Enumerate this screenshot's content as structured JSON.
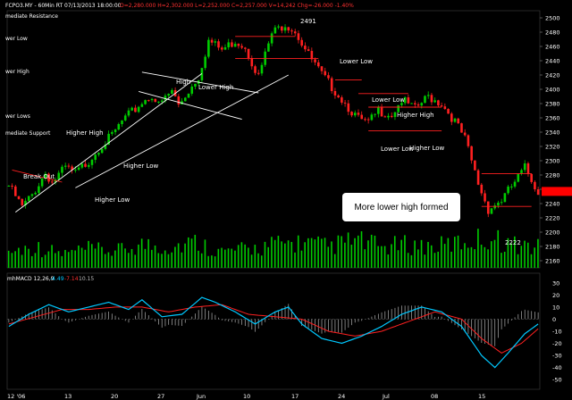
{
  "header": {
    "symbol": "FCPO3.MY - 60Min RT  07/13/2013 18:00:00",
    "ohlc": "O=2,280.000  H=2,302.000  L=2,252.000  C=2,257.000  V=14,242  Chg=-26.000  -1.40%"
  },
  "left_notes": [
    "mediate Resistance",
    "wer Low",
    "wer High",
    "wer Lows",
    "mediate Support"
  ],
  "annotations": {
    "break_out": "Break Out",
    "higher_high_1": "Higher High",
    "higher_low_1": "Higher Low",
    "higher_low_2": "Higher Low",
    "high": "High",
    "lower_high": "Lower High",
    "peak": "2491",
    "lower_low_1": "Lower Low",
    "lower_low_2": "Lower Low",
    "higher_high_2": "Higher High",
    "lower_low_3": "Lower Low",
    "higher_low_3": "Higher Low",
    "bottom": "2222",
    "callout": "More lower high formed"
  },
  "macd_label": {
    "name": "mhMACD 12,26,9",
    "v1": "-4.49",
    "v2": "-7.14",
    "v3": "10.15"
  },
  "colors": {
    "background": "#000000",
    "candle_up": "#00cc00",
    "candle_down": "#ff2020",
    "volume": "#00cc00",
    "macd_line": "#00c8ff",
    "signal_line": "#ff2020",
    "current_price": "#ff0000"
  },
  "chart_data": {
    "type": "line",
    "title": "FCPO3.MY - 60Min RT",
    "x_labels": [
      "12 '06",
      "13",
      "20",
      "27",
      "Jun",
      "10",
      "17",
      "24",
      "Jul",
      "08",
      "15"
    ],
    "price_axis": {
      "ylim": [
        2150,
        2510
      ],
      "ticks": [
        2160,
        2180,
        2200,
        2220,
        2240,
        2260,
        2280,
        2300,
        2320,
        2340,
        2360,
        2380,
        2400,
        2420,
        2440,
        2460,
        2480,
        2500
      ],
      "current_price": 2257
    },
    "macd_axis": {
      "ylim": [
        -58,
        38
      ],
      "ticks": [
        30,
        20,
        10,
        0,
        -10,
        -20,
        -30,
        -40,
        -50
      ]
    },
    "price_path": [
      [
        0,
        2265
      ],
      [
        4,
        2235
      ],
      [
        7,
        2252
      ],
      [
        11,
        2283
      ],
      [
        13,
        2270
      ],
      [
        17,
        2290
      ],
      [
        20,
        2282
      ],
      [
        24,
        2300
      ],
      [
        27,
        2318
      ],
      [
        31,
        2335
      ],
      [
        34,
        2355
      ],
      [
        38,
        2372
      ],
      [
        40,
        2382
      ],
      [
        43,
        2392
      ],
      [
        45,
        2377
      ],
      [
        49,
        2398
      ],
      [
        51,
        2378
      ],
      [
        54,
        2398
      ],
      [
        57,
        2418
      ],
      [
        60,
        2468
      ],
      [
        64,
        2455
      ],
      [
        68,
        2468
      ],
      [
        71,
        2460
      ],
      [
        75,
        2418
      ],
      [
        79,
        2478
      ],
      [
        83,
        2492
      ],
      [
        86,
        2482
      ],
      [
        90,
        2448
      ],
      [
        94,
        2420
      ],
      [
        98,
        2398
      ],
      [
        102,
        2375
      ],
      [
        105,
        2358
      ],
      [
        108,
        2352
      ],
      [
        111,
        2370
      ],
      [
        115,
        2365
      ],
      [
        118,
        2385
      ],
      [
        122,
        2372
      ],
      [
        126,
        2390
      ],
      [
        130,
        2380
      ],
      [
        134,
        2355
      ],
      [
        137,
        2330
      ],
      [
        141,
        2268
      ],
      [
        144,
        2232
      ],
      [
        148,
        2245
      ],
      [
        152,
        2270
      ],
      [
        155,
        2290
      ],
      [
        159,
        2257
      ]
    ],
    "volume_path": [
      [
        0,
        0.35
      ],
      [
        8,
        0.45
      ],
      [
        16,
        0.3
      ],
      [
        24,
        0.4
      ],
      [
        32,
        0.35
      ],
      [
        40,
        0.5
      ],
      [
        48,
        0.45
      ],
      [
        56,
        0.55
      ],
      [
        64,
        0.35
      ],
      [
        72,
        0.4
      ],
      [
        80,
        0.5
      ],
      [
        88,
        0.55
      ],
      [
        96,
        0.45
      ],
      [
        104,
        0.6
      ],
      [
        112,
        0.45
      ],
      [
        120,
        0.5
      ],
      [
        128,
        0.45
      ],
      [
        136,
        0.55
      ],
      [
        144,
        0.65
      ],
      [
        152,
        0.5
      ],
      [
        159,
        0.45
      ]
    ],
    "macd_path": [
      [
        0,
        -6
      ],
      [
        6,
        4
      ],
      [
        12,
        12
      ],
      [
        18,
        6
      ],
      [
        24,
        10
      ],
      [
        30,
        14
      ],
      [
        36,
        8
      ],
      [
        40,
        16
      ],
      [
        46,
        2
      ],
      [
        52,
        4
      ],
      [
        58,
        18
      ],
      [
        62,
        14
      ],
      [
        68,
        6
      ],
      [
        74,
        -4
      ],
      [
        80,
        6
      ],
      [
        84,
        10
      ],
      [
        88,
        -4
      ],
      [
        94,
        -16
      ],
      [
        100,
        -20
      ],
      [
        106,
        -14
      ],
      [
        112,
        -6
      ],
      [
        118,
        4
      ],
      [
        124,
        10
      ],
      [
        130,
        6
      ],
      [
        136,
        -6
      ],
      [
        142,
        -30
      ],
      [
        146,
        -40
      ],
      [
        150,
        -28
      ],
      [
        155,
        -12
      ],
      [
        159,
        -4
      ]
    ],
    "signal_path": [
      [
        0,
        -4
      ],
      [
        8,
        2
      ],
      [
        16,
        8
      ],
      [
        24,
        8
      ],
      [
        32,
        10
      ],
      [
        40,
        10
      ],
      [
        48,
        6
      ],
      [
        56,
        10
      ],
      [
        64,
        12
      ],
      [
        72,
        4
      ],
      [
        80,
        2
      ],
      [
        88,
        0
      ],
      [
        96,
        -10
      ],
      [
        104,
        -14
      ],
      [
        112,
        -10
      ],
      [
        120,
        -2
      ],
      [
        128,
        6
      ],
      [
        136,
        0
      ],
      [
        142,
        -16
      ],
      [
        148,
        -28
      ],
      [
        154,
        -20
      ],
      [
        159,
        -8
      ]
    ]
  }
}
